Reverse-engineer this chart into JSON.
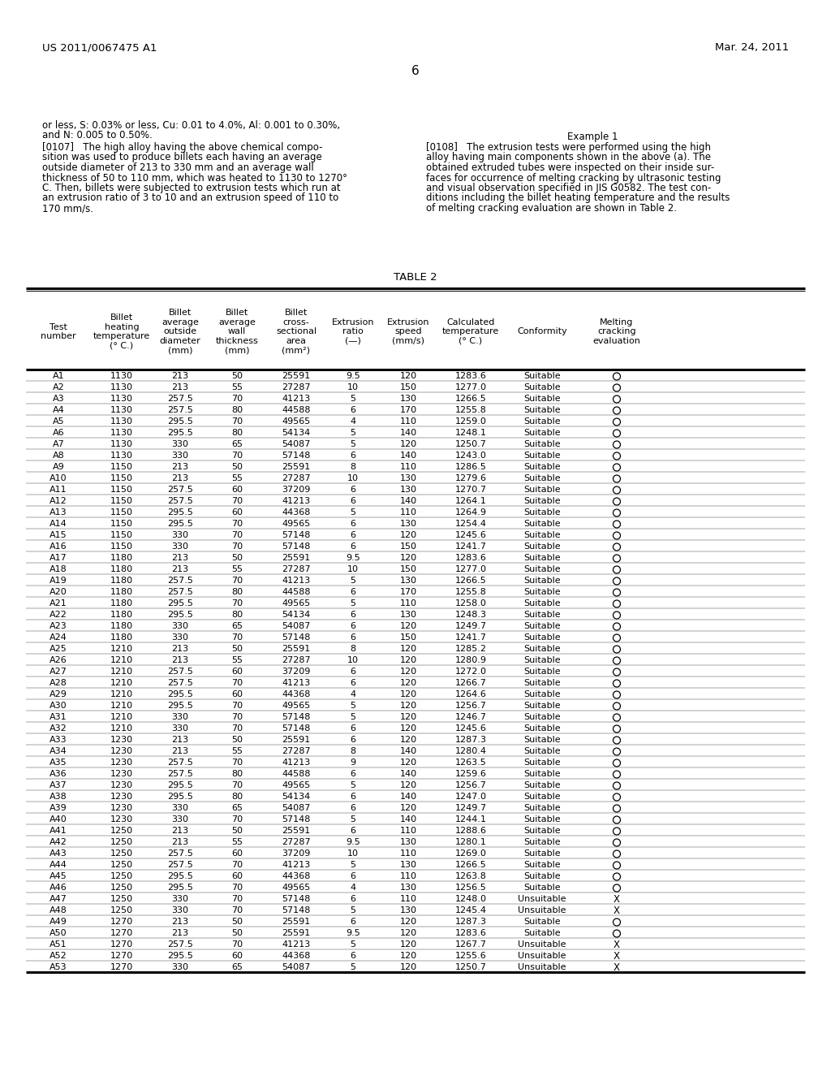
{
  "header_left": "US 2011/0067475 A1",
  "header_right": "Mar. 24, 2011",
  "page_number": "6",
  "left_text_lines": [
    "or less, S: 0.03% or less, Cu: 0.01 to 4.0%, Al: 0.001 to 0.30%,",
    "and N: 0.005 to 0.50%."
  ],
  "para_left_lines": [
    "[0107]   The high alloy having the above chemical compo-",
    "sition was used to produce billets each having an average",
    "outside diameter of 213 to 330 mm and an average wall",
    "thickness of 50 to 110 mm, which was heated to 1130 to 1270°",
    "C. Then, billets were subjected to extrusion tests which run at",
    "an extrusion ratio of 3 to 10 and an extrusion speed of 110 to",
    "170 mm/s."
  ],
  "right_heading": "Example 1",
  "para_right_lines": [
    "[0108]   The extrusion tests were performed using the high",
    "alloy having main components shown in the above (a). The",
    "obtained extruded tubes were inspected on their inside sur-",
    "faces for occurrence of melting cracking by ultrasonic testing",
    "and visual observation specified in JIS G0582. The test con-",
    "ditions including the billet heating temperature and the results",
    "of melting cracking evaluation are shown in Table 2."
  ],
  "table_title": "TABLE 2",
  "rows": [
    [
      "A1",
      1130,
      "213",
      "50",
      "25591",
      "9.5",
      "120",
      "1283.6",
      "Suitable",
      "O"
    ],
    [
      "A2",
      1130,
      "213",
      "55",
      "27287",
      "10",
      "150",
      "1277.0",
      "Suitable",
      "O"
    ],
    [
      "A3",
      1130,
      "257.5",
      "70",
      "41213",
      "5",
      "130",
      "1266.5",
      "Suitable",
      "O"
    ],
    [
      "A4",
      1130,
      "257.5",
      "80",
      "44588",
      "6",
      "170",
      "1255.8",
      "Suitable",
      "O"
    ],
    [
      "A5",
      1130,
      "295.5",
      "70",
      "49565",
      "4",
      "110",
      "1259.0",
      "Suitable",
      "O"
    ],
    [
      "A6",
      1130,
      "295.5",
      "80",
      "54134",
      "5",
      "140",
      "1248.1",
      "Suitable",
      "O"
    ],
    [
      "A7",
      1130,
      "330",
      "65",
      "54087",
      "5",
      "120",
      "1250.7",
      "Suitable",
      "O"
    ],
    [
      "A8",
      1130,
      "330",
      "70",
      "57148",
      "6",
      "140",
      "1243.0",
      "Suitable",
      "O"
    ],
    [
      "A9",
      1150,
      "213",
      "50",
      "25591",
      "8",
      "110",
      "1286.5",
      "Suitable",
      "O"
    ],
    [
      "A10",
      1150,
      "213",
      "55",
      "27287",
      "10",
      "130",
      "1279.6",
      "Suitable",
      "O"
    ],
    [
      "A11",
      1150,
      "257.5",
      "60",
      "37209",
      "6",
      "130",
      "1270.7",
      "Suitable",
      "O"
    ],
    [
      "A12",
      1150,
      "257.5",
      "70",
      "41213",
      "6",
      "140",
      "1264.1",
      "Suitable",
      "O"
    ],
    [
      "A13",
      1150,
      "295.5",
      "60",
      "44368",
      "5",
      "110",
      "1264.9",
      "Suitable",
      "O"
    ],
    [
      "A14",
      1150,
      "295.5",
      "70",
      "49565",
      "6",
      "130",
      "1254.4",
      "Suitable",
      "O"
    ],
    [
      "A15",
      1150,
      "330",
      "70",
      "57148",
      "6",
      "120",
      "1245.6",
      "Suitable",
      "O"
    ],
    [
      "A16",
      1150,
      "330",
      "70",
      "57148",
      "6",
      "150",
      "1241.7",
      "Suitable",
      "O"
    ],
    [
      "A17",
      1180,
      "213",
      "50",
      "25591",
      "9.5",
      "120",
      "1283.6",
      "Suitable",
      "O"
    ],
    [
      "A18",
      1180,
      "213",
      "55",
      "27287",
      "10",
      "150",
      "1277.0",
      "Suitable",
      "O"
    ],
    [
      "A19",
      1180,
      "257.5",
      "70",
      "41213",
      "5",
      "130",
      "1266.5",
      "Suitable",
      "O"
    ],
    [
      "A20",
      1180,
      "257.5",
      "80",
      "44588",
      "6",
      "170",
      "1255.8",
      "Suitable",
      "O"
    ],
    [
      "A21",
      1180,
      "295.5",
      "70",
      "49565",
      "5",
      "110",
      "1258.0",
      "Suitable",
      "O"
    ],
    [
      "A22",
      1180,
      "295.5",
      "80",
      "54134",
      "6",
      "130",
      "1248.3",
      "Suitable",
      "O"
    ],
    [
      "A23",
      1180,
      "330",
      "65",
      "54087",
      "6",
      "120",
      "1249.7",
      "Suitable",
      "O"
    ],
    [
      "A24",
      1180,
      "330",
      "70",
      "57148",
      "6",
      "150",
      "1241.7",
      "Suitable",
      "O"
    ],
    [
      "A25",
      1210,
      "213",
      "50",
      "25591",
      "8",
      "120",
      "1285.2",
      "Suitable",
      "O"
    ],
    [
      "A26",
      1210,
      "213",
      "55",
      "27287",
      "10",
      "120",
      "1280.9",
      "Suitable",
      "O"
    ],
    [
      "A27",
      1210,
      "257.5",
      "60",
      "37209",
      "6",
      "120",
      "1272.0",
      "Suitable",
      "O"
    ],
    [
      "A28",
      1210,
      "257.5",
      "70",
      "41213",
      "6",
      "120",
      "1266.7",
      "Suitable",
      "O"
    ],
    [
      "A29",
      1210,
      "295.5",
      "60",
      "44368",
      "4",
      "120",
      "1264.6",
      "Suitable",
      "O"
    ],
    [
      "A30",
      1210,
      "295.5",
      "70",
      "49565",
      "5",
      "120",
      "1256.7",
      "Suitable",
      "O"
    ],
    [
      "A31",
      1210,
      "330",
      "70",
      "57148",
      "5",
      "120",
      "1246.7",
      "Suitable",
      "O"
    ],
    [
      "A32",
      1210,
      "330",
      "70",
      "57148",
      "6",
      "120",
      "1245.6",
      "Suitable",
      "O"
    ],
    [
      "A33",
      1230,
      "213",
      "50",
      "25591",
      "6",
      "120",
      "1287.3",
      "Suitable",
      "O"
    ],
    [
      "A34",
      1230,
      "213",
      "55",
      "27287",
      "8",
      "140",
      "1280.4",
      "Suitable",
      "O"
    ],
    [
      "A35",
      1230,
      "257.5",
      "70",
      "41213",
      "9",
      "120",
      "1263.5",
      "Suitable",
      "O"
    ],
    [
      "A36",
      1230,
      "257.5",
      "80",
      "44588",
      "6",
      "140",
      "1259.6",
      "Suitable",
      "O"
    ],
    [
      "A37",
      1230,
      "295.5",
      "70",
      "49565",
      "5",
      "120",
      "1256.7",
      "Suitable",
      "O"
    ],
    [
      "A38",
      1230,
      "295.5",
      "80",
      "54134",
      "6",
      "140",
      "1247.0",
      "Suitable",
      "O"
    ],
    [
      "A39",
      1230,
      "330",
      "65",
      "54087",
      "6",
      "120",
      "1249.7",
      "Suitable",
      "O"
    ],
    [
      "A40",
      1230,
      "330",
      "70",
      "57148",
      "5",
      "140",
      "1244.1",
      "Suitable",
      "O"
    ],
    [
      "A41",
      1250,
      "213",
      "50",
      "25591",
      "6",
      "110",
      "1288.6",
      "Suitable",
      "O"
    ],
    [
      "A42",
      1250,
      "213",
      "55",
      "27287",
      "9.5",
      "130",
      "1280.1",
      "Suitable",
      "O"
    ],
    [
      "A43",
      1250,
      "257.5",
      "60",
      "37209",
      "10",
      "110",
      "1269.0",
      "Suitable",
      "O"
    ],
    [
      "A44",
      1250,
      "257.5",
      "70",
      "41213",
      "5",
      "130",
      "1266.5",
      "Suitable",
      "O"
    ],
    [
      "A45",
      1250,
      "295.5",
      "60",
      "44368",
      "6",
      "110",
      "1263.8",
      "Suitable",
      "O"
    ],
    [
      "A46",
      1250,
      "295.5",
      "70",
      "49565",
      "4",
      "130",
      "1256.5",
      "Suitable",
      "O"
    ],
    [
      "A47",
      1250,
      "330",
      "70",
      "57148",
      "6",
      "110",
      "1248.0",
      "Unsuitable",
      "X"
    ],
    [
      "A48",
      1250,
      "330",
      "70",
      "57148",
      "5",
      "130",
      "1245.4",
      "Unsuitable",
      "X"
    ],
    [
      "A49",
      1270,
      "213",
      "50",
      "25591",
      "6",
      "120",
      "1287.3",
      "Suitable",
      "O"
    ],
    [
      "A50",
      1270,
      "213",
      "50",
      "25591",
      "9.5",
      "120",
      "1283.6",
      "Suitable",
      "O"
    ],
    [
      "A51",
      1270,
      "257.5",
      "70",
      "41213",
      "5",
      "120",
      "1267.7",
      "Unsuitable",
      "X"
    ],
    [
      "A52",
      1270,
      "295.5",
      "60",
      "44368",
      "6",
      "120",
      "1255.6",
      "Unsuitable",
      "X"
    ],
    [
      "A53",
      1270,
      "330",
      "65",
      "54087",
      "5",
      "120",
      "1250.7",
      "Unsuitable",
      "X"
    ]
  ]
}
